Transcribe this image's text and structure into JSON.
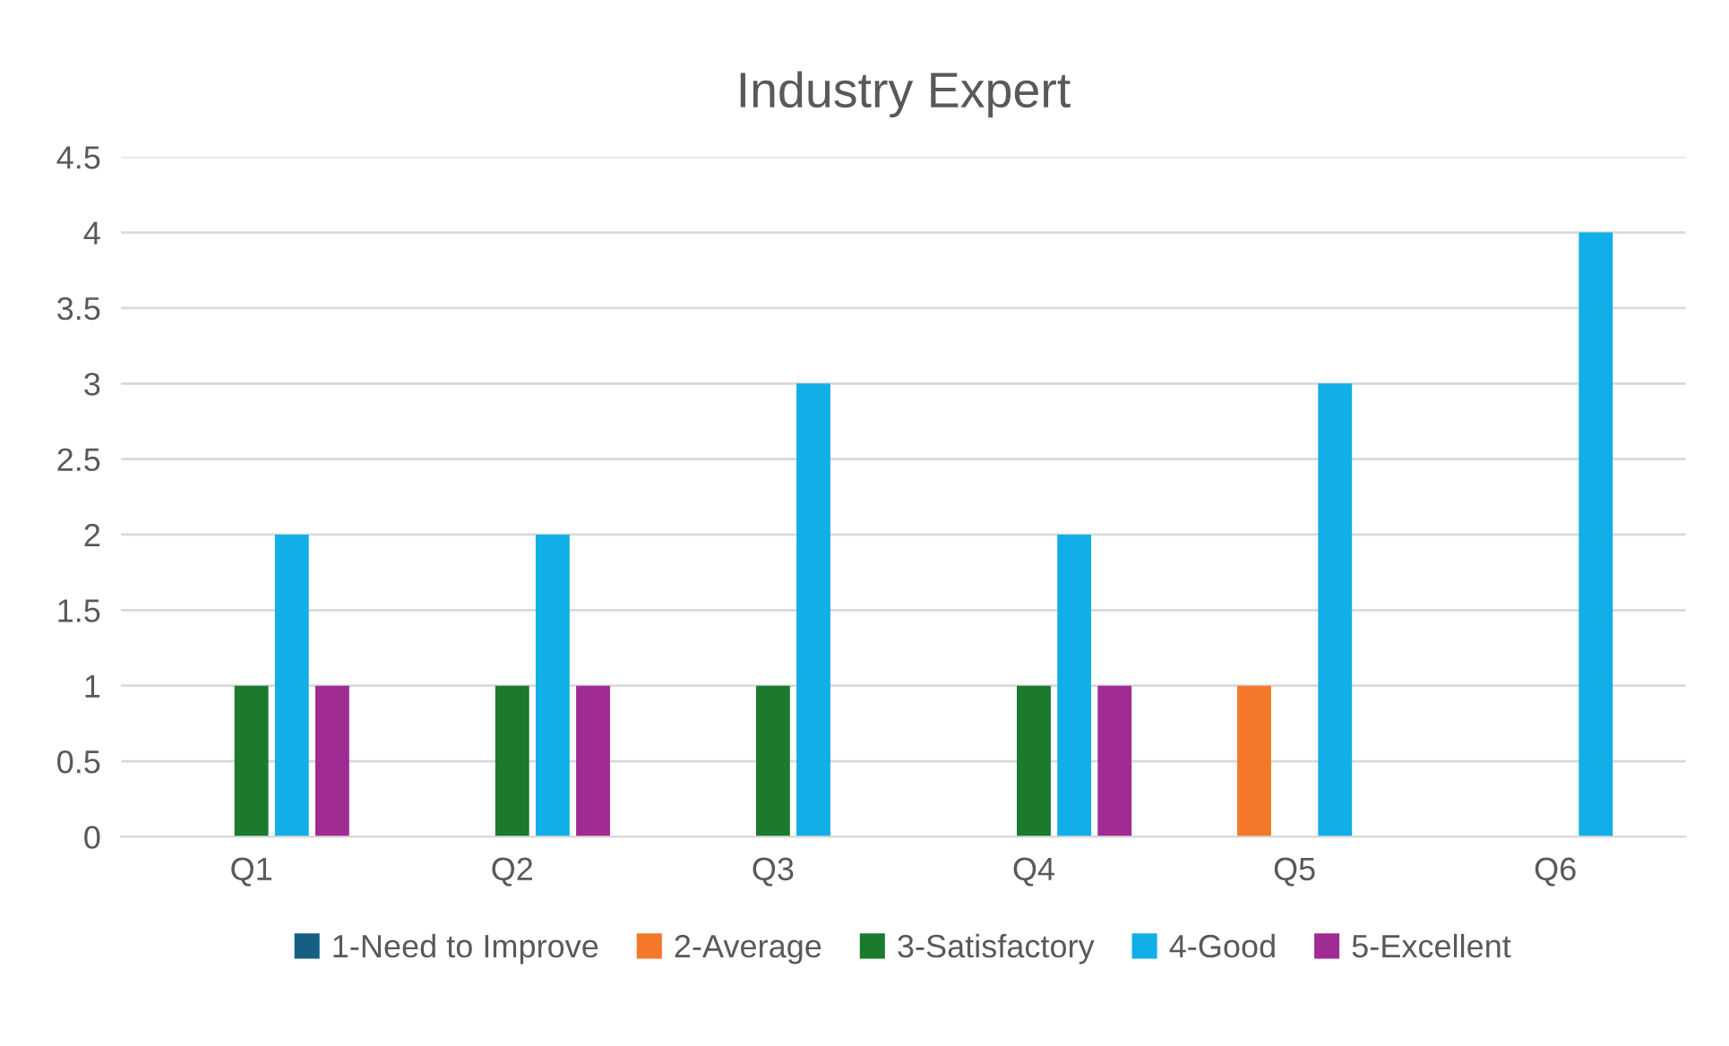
{
  "chart_data": {
    "type": "bar",
    "title": "Industry Expert",
    "categories": [
      "Q1",
      "Q2",
      "Q3",
      "Q4",
      "Q5",
      "Q6"
    ],
    "series": [
      {
        "name": "1-Need to Improve",
        "color": "#156082",
        "values": [
          0,
          0,
          0,
          0,
          0,
          0
        ]
      },
      {
        "name": "2-Average",
        "color": "#f5772a",
        "values": [
          0,
          0,
          0,
          0,
          1,
          0
        ]
      },
      {
        "name": "3-Satisfactory",
        "color": "#1b7a2c",
        "values": [
          1,
          1,
          1,
          1,
          0,
          0
        ]
      },
      {
        "name": "4-Good",
        "color": "#12aee8",
        "values": [
          2,
          2,
          3,
          2,
          3,
          4
        ]
      },
      {
        "name": "5-Excellent",
        "color": "#a02b93",
        "values": [
          1,
          1,
          0,
          1,
          0,
          0
        ]
      }
    ],
    "ylim": [
      0,
      4.5
    ],
    "yticks": [
      0,
      0.5,
      1,
      1.5,
      2,
      2.5,
      3,
      3.5,
      4,
      4.5
    ],
    "grid": "y",
    "legend": "bottom"
  }
}
